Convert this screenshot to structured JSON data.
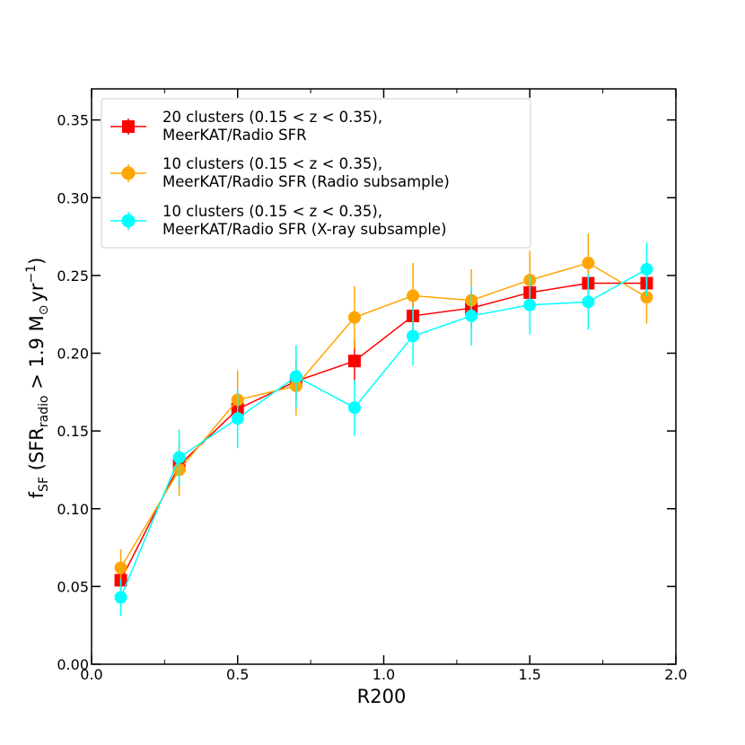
{
  "chart_data": {
    "type": "line",
    "xlabel": "R200",
    "ylabel": {
      "prefix": "f",
      "prefix_sub": "SF",
      "open": " (SFR",
      "open_sub": "radio",
      "middle": " > 1.9 M",
      "sun_symbol": "⊙",
      "unit": "yr",
      "unit_sup": "−1",
      "close": ")"
    },
    "xlim": [
      0.0,
      2.0
    ],
    "ylim": [
      0.0,
      0.37
    ],
    "xticks": [
      0.0,
      0.5,
      1.0,
      1.5,
      2.0
    ],
    "xtick_labels": [
      "0.0",
      "0.5",
      "1.0",
      "1.5",
      "2.0"
    ],
    "yticks": [
      0.0,
      0.05,
      0.1,
      0.15,
      0.2,
      0.25,
      0.3,
      0.35
    ],
    "ytick_labels": [
      "0.00",
      "0.05",
      "0.10",
      "0.15",
      "0.20",
      "0.25",
      "0.30",
      "0.35"
    ],
    "grid": false,
    "legend_position": "top-left",
    "series": [
      {
        "name": "20 clusters (0.15 < z < 0.35),",
        "name_line2": "MeerKAT/Radio SFR",
        "color": "#ff0000",
        "marker": "square",
        "x": [
          0.1,
          0.3,
          0.5,
          0.7,
          0.9,
          1.1,
          1.3,
          1.5,
          1.7,
          1.9
        ],
        "y": [
          0.054,
          0.128,
          0.164,
          0.182,
          0.195,
          0.224,
          0.229,
          0.239,
          0.245,
          0.245
        ],
        "yerr": [
          0.009,
          0.014,
          0.012,
          0.012,
          0.013,
          0.013,
          0.012,
          0.012,
          0.011,
          0.011
        ]
      },
      {
        "name": "10 clusters (0.15 < z < 0.35),",
        "name_line2": "MeerKAT/Radio SFR (Radio subsample)",
        "color": "#ffa500",
        "marker": "circle",
        "x": [
          0.1,
          0.3,
          0.5,
          0.7,
          0.9,
          1.1,
          1.3,
          1.5,
          1.7,
          1.9
        ],
        "y": [
          0.062,
          0.125,
          0.17,
          0.179,
          0.223,
          0.237,
          0.234,
          0.247,
          0.258,
          0.236
        ],
        "yerr": [
          0.012,
          0.017,
          0.019,
          0.019,
          0.02,
          0.021,
          0.02,
          0.019,
          0.019,
          0.017
        ]
      },
      {
        "name": "10 clusters (0.15 < z < 0.35),",
        "name_line2": "MeerKAT/Radio SFR (X-ray subsample)",
        "color": "#00ffff",
        "marker": "circle",
        "x": [
          0.1,
          0.3,
          0.5,
          0.7,
          0.9,
          1.1,
          1.3,
          1.5,
          1.7,
          1.9
        ],
        "y": [
          0.043,
          0.133,
          0.158,
          0.185,
          0.165,
          0.211,
          0.224,
          0.231,
          0.233,
          0.254
        ],
        "yerr": [
          0.012,
          0.018,
          0.019,
          0.02,
          0.018,
          0.019,
          0.019,
          0.019,
          0.018,
          0.017
        ]
      }
    ]
  }
}
